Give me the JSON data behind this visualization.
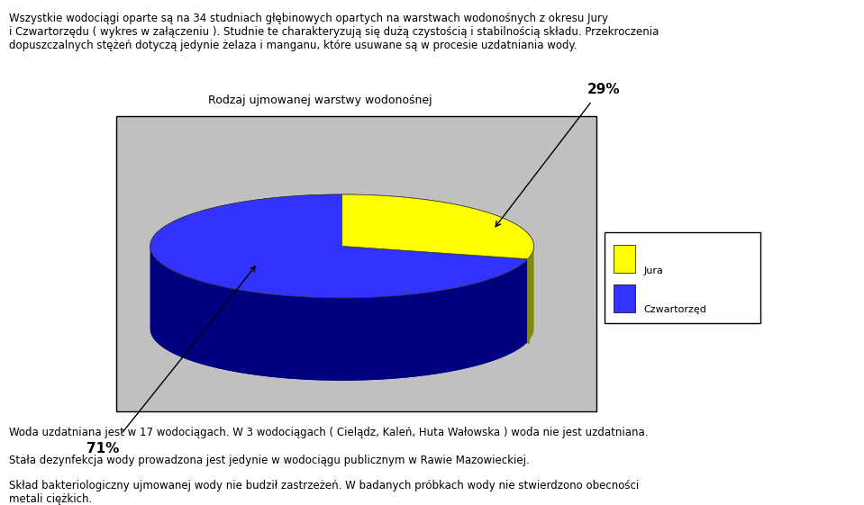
{
  "title": "Rodzaj ujmowanej warstwy wodonośnej",
  "slices": [
    29,
    71
  ],
  "labels": [
    "Jura",
    "Czwartorzęd"
  ],
  "colors_top": [
    "#FFFF00",
    "#3333FF"
  ],
  "colors_side": [
    "#888800",
    "#000080"
  ],
  "background_color": "#C0C0C0",
  "text_above": "Wszystkie wodociągi oparte są na 34 studniach głębinowych opartych na warstwach wodonośnych z okresu Jury\ni Czwartorzędu ( wykres w załączeniu ). Studnie te charakteryzują się dużą czystością i stabilnością składu. Przekroczenia\ndopuszczalnych stężeń dotyczą jedynie żelaza i manganu, które usuwane są w procesie uzdatniania wody.",
  "text_below_1": "Woda uzdatniana jest w 17 wodociągach. W 3 wodociągach ( Cielądz, Kaleń, Huta Wałowska ) woda nie jest uzdatniana.",
  "text_below_2": "Stała dezynfekcja wody prowadzona jest jedynie w wodociągu publicznym w Rawie Mazowieckiej.",
  "text_below_3": "Skład bakteriologiczny ujmowanej wody nie budził zastrzeżeń. W badanych próbkach wody nie stwierdzono obecności\nmetali ciężkich.",
  "jura_pct": 29,
  "czw_pct": 71,
  "label_29": "29%",
  "label_71": "71%"
}
